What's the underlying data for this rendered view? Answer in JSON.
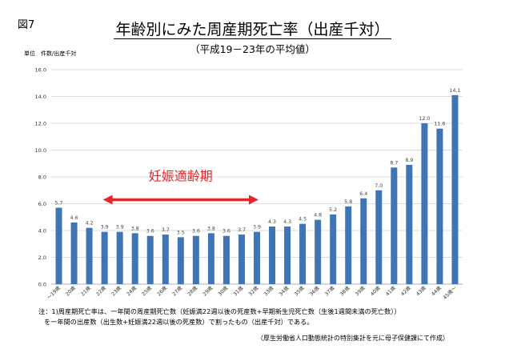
{
  "figure_label": "図7",
  "title": "年齢別にみた周産期死亡率（出産千対）",
  "subtitle": "（平成19－23年の平均値）",
  "unit_label": "単位　件数/出産千対",
  "chart_data": {
    "type": "bar",
    "categories": [
      "～19歳",
      "20歳",
      "21歳",
      "22歳",
      "23歳",
      "24歳",
      "25歳",
      "26歳",
      "27歳",
      "28歳",
      "29歳",
      "30歳",
      "31歳",
      "32歳",
      "33歳",
      "34歳",
      "35歳",
      "36歳",
      "37歳",
      "38歳",
      "39歳",
      "40歳",
      "41歳",
      "42歳",
      "43歳",
      "44歳",
      "45歳～"
    ],
    "values": [
      5.7,
      4.6,
      4.2,
      3.9,
      3.9,
      3.8,
      3.6,
      3.7,
      3.5,
      3.6,
      3.8,
      3.6,
      3.7,
      3.9,
      4.3,
      4.3,
      4.5,
      4.8,
      5.2,
      5.8,
      6.4,
      7.0,
      8.7,
      8.9,
      12.0,
      11.6,
      14.1
    ],
    "data_labels": [
      "5.7",
      "4.6",
      "4.2",
      "3.9",
      "3.9",
      "3.8",
      "3.6",
      "3.7",
      "3.5",
      "3.6",
      "3.8",
      "3.6",
      "3.7",
      "3.9",
      "4.3",
      "4.3",
      "4.5",
      "4.8",
      "5.2",
      "5.8",
      "6.4",
      "7.0",
      "8.7",
      "8.9",
      "12.0",
      "11.6",
      "14.1"
    ],
    "ylim": [
      0,
      16
    ],
    "yticks": [
      "0.0",
      "2.0",
      "4.0",
      "6.0",
      "8.0",
      "10.0",
      "12.0",
      "14.0",
      "16.0"
    ],
    "grid": true,
    "bar_color": "#3f74b5",
    "annotation": {
      "text": "妊娠適齢期",
      "color": "#e8262a",
      "from_category": "22歳",
      "to_category": "32歳",
      "y_value": 6.3
    }
  },
  "notes": [
    "注：1)周産期死亡率は、一年間の周産期死亡数（妊娠満22週以後の死産数+早期新生児死亡数（生後1週間未満の死亡数））",
    "を一年間の出産数（出生数+妊娠満22週以後の死産数）で割ったもの（出産千対）である。"
  ],
  "source": "（厚生労働省人口動態統計の特別集計を元に母子保健課にて作成）"
}
